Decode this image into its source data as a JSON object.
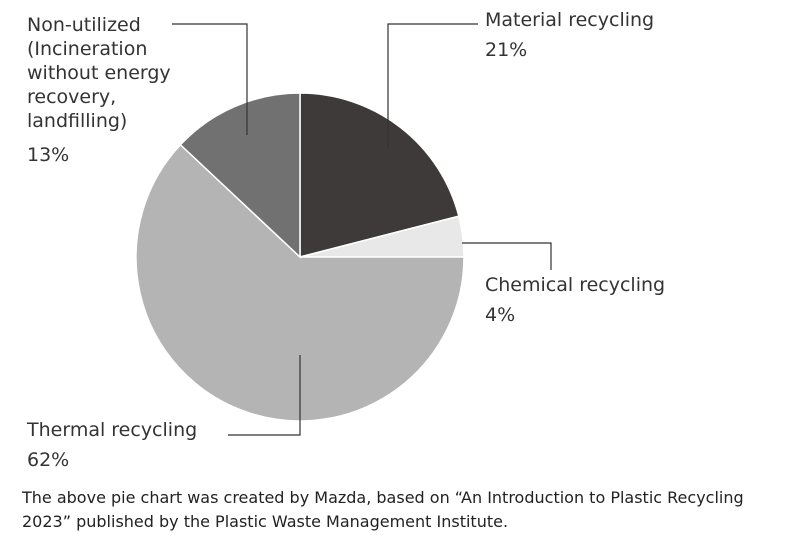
{
  "chart_data": {
    "type": "pie",
    "categories": [
      "Material recycling",
      "Chemical recycling",
      "Thermal recycling",
      "Non-utilized (Incineration without energy recovery, landfilling)"
    ],
    "values": [
      21,
      4,
      62,
      13
    ],
    "value_labels": [
      "21%",
      "4%",
      "62%",
      "13%"
    ],
    "colors": [
      "#3e3a39",
      "#e8e8e8",
      "#b4b4b4",
      "#727171"
    ],
    "note": "The above pie chart was created by Mazda, based on “An Introduction to Plastic Recycling 2023” published by the Plastic Waste Management Institute."
  }
}
